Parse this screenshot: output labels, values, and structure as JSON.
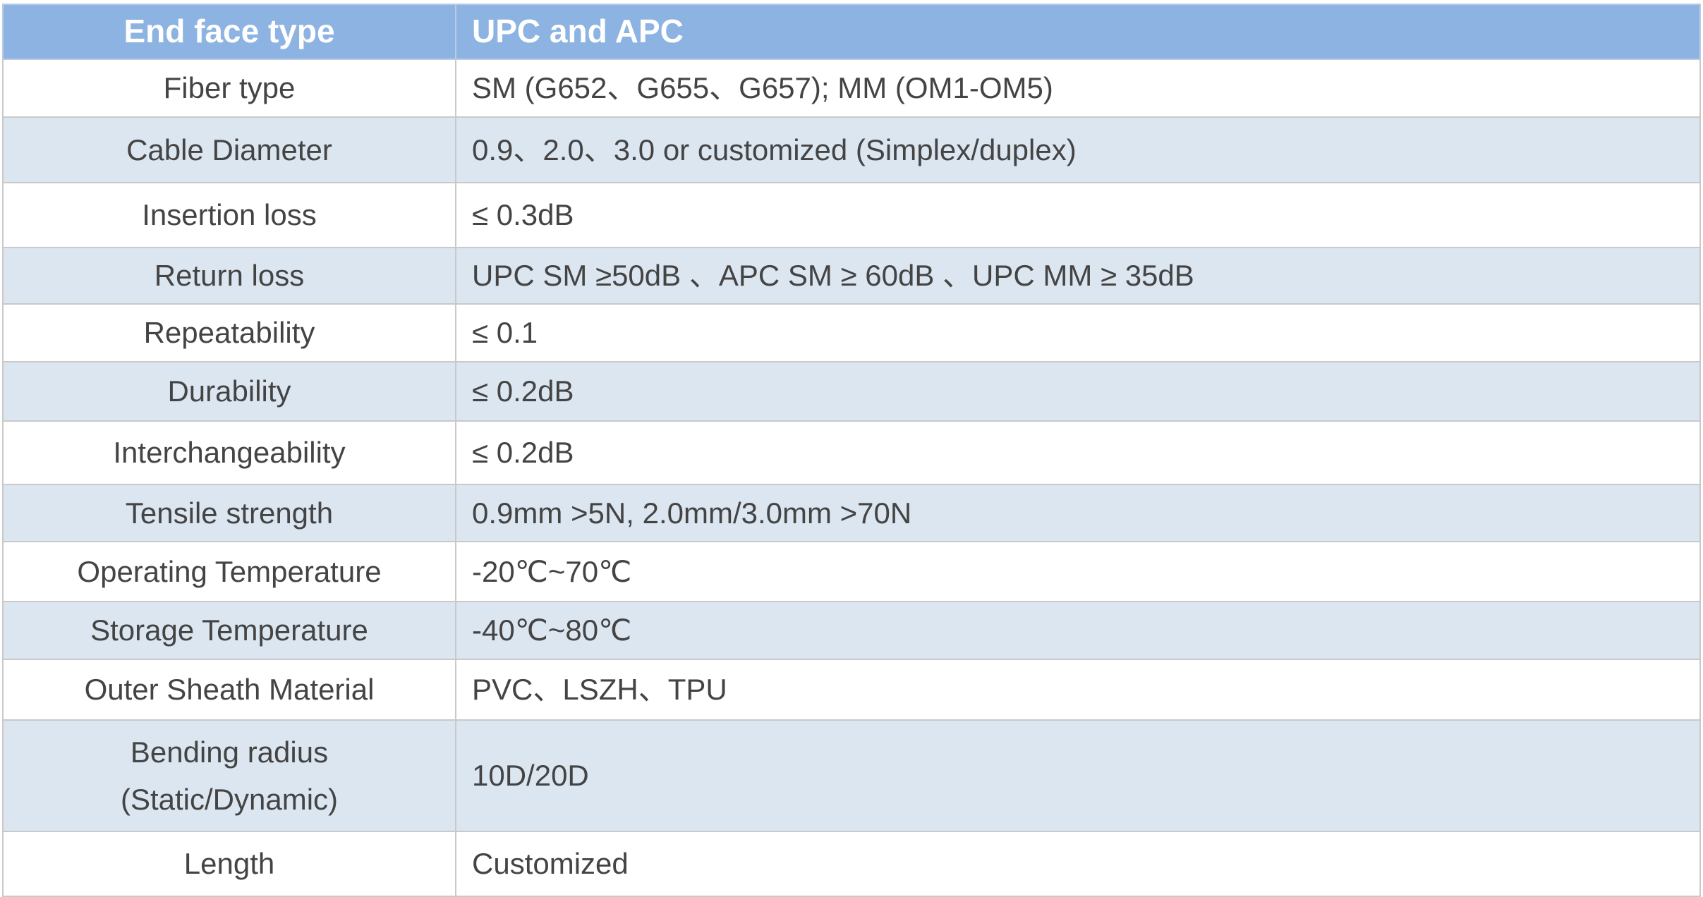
{
  "header": {
    "key": "End face type",
    "value": "UPC and APC"
  },
  "rows": [
    {
      "key": "Fiber type",
      "value": "SM (G652、G655、G657); MM (OM1-OM5)"
    },
    {
      "key": "Cable Diameter",
      "value": "0.9、2.0、3.0 or customized (Simplex/duplex)"
    },
    {
      "key": "Insertion loss",
      "value": "≤ 0.3dB"
    },
    {
      "key": "Return loss",
      "value": "UPC SM ≥50dB 、APC SM ≥ 60dB 、UPC MM ≥ 35dB"
    },
    {
      "key": "Repeatability",
      "value": "≤ 0.1"
    },
    {
      "key": "Durability",
      "value": "≤ 0.2dB"
    },
    {
      "key": "Interchangeability",
      "value": "≤ 0.2dB"
    },
    {
      "key": "Tensile strength",
      "value": "0.9mm >5N, 2.0mm/3.0mm >70N"
    },
    {
      "key": "Operating Temperature",
      "value": "-20℃~70℃"
    },
    {
      "key": "Storage Temperature",
      "value": "-40℃~80℃"
    },
    {
      "key": "Outer Sheath Material",
      "value": "PVC、LSZH、TPU"
    },
    {
      "key": "Bending radius (Static/Dynamic)",
      "value": "10D/20D"
    },
    {
      "key": "Length",
      "value": "Customized"
    }
  ],
  "colors": {
    "header_bg": "#8db3e2",
    "alt_row_bg": "#dce6f1",
    "text": "#444444"
  }
}
